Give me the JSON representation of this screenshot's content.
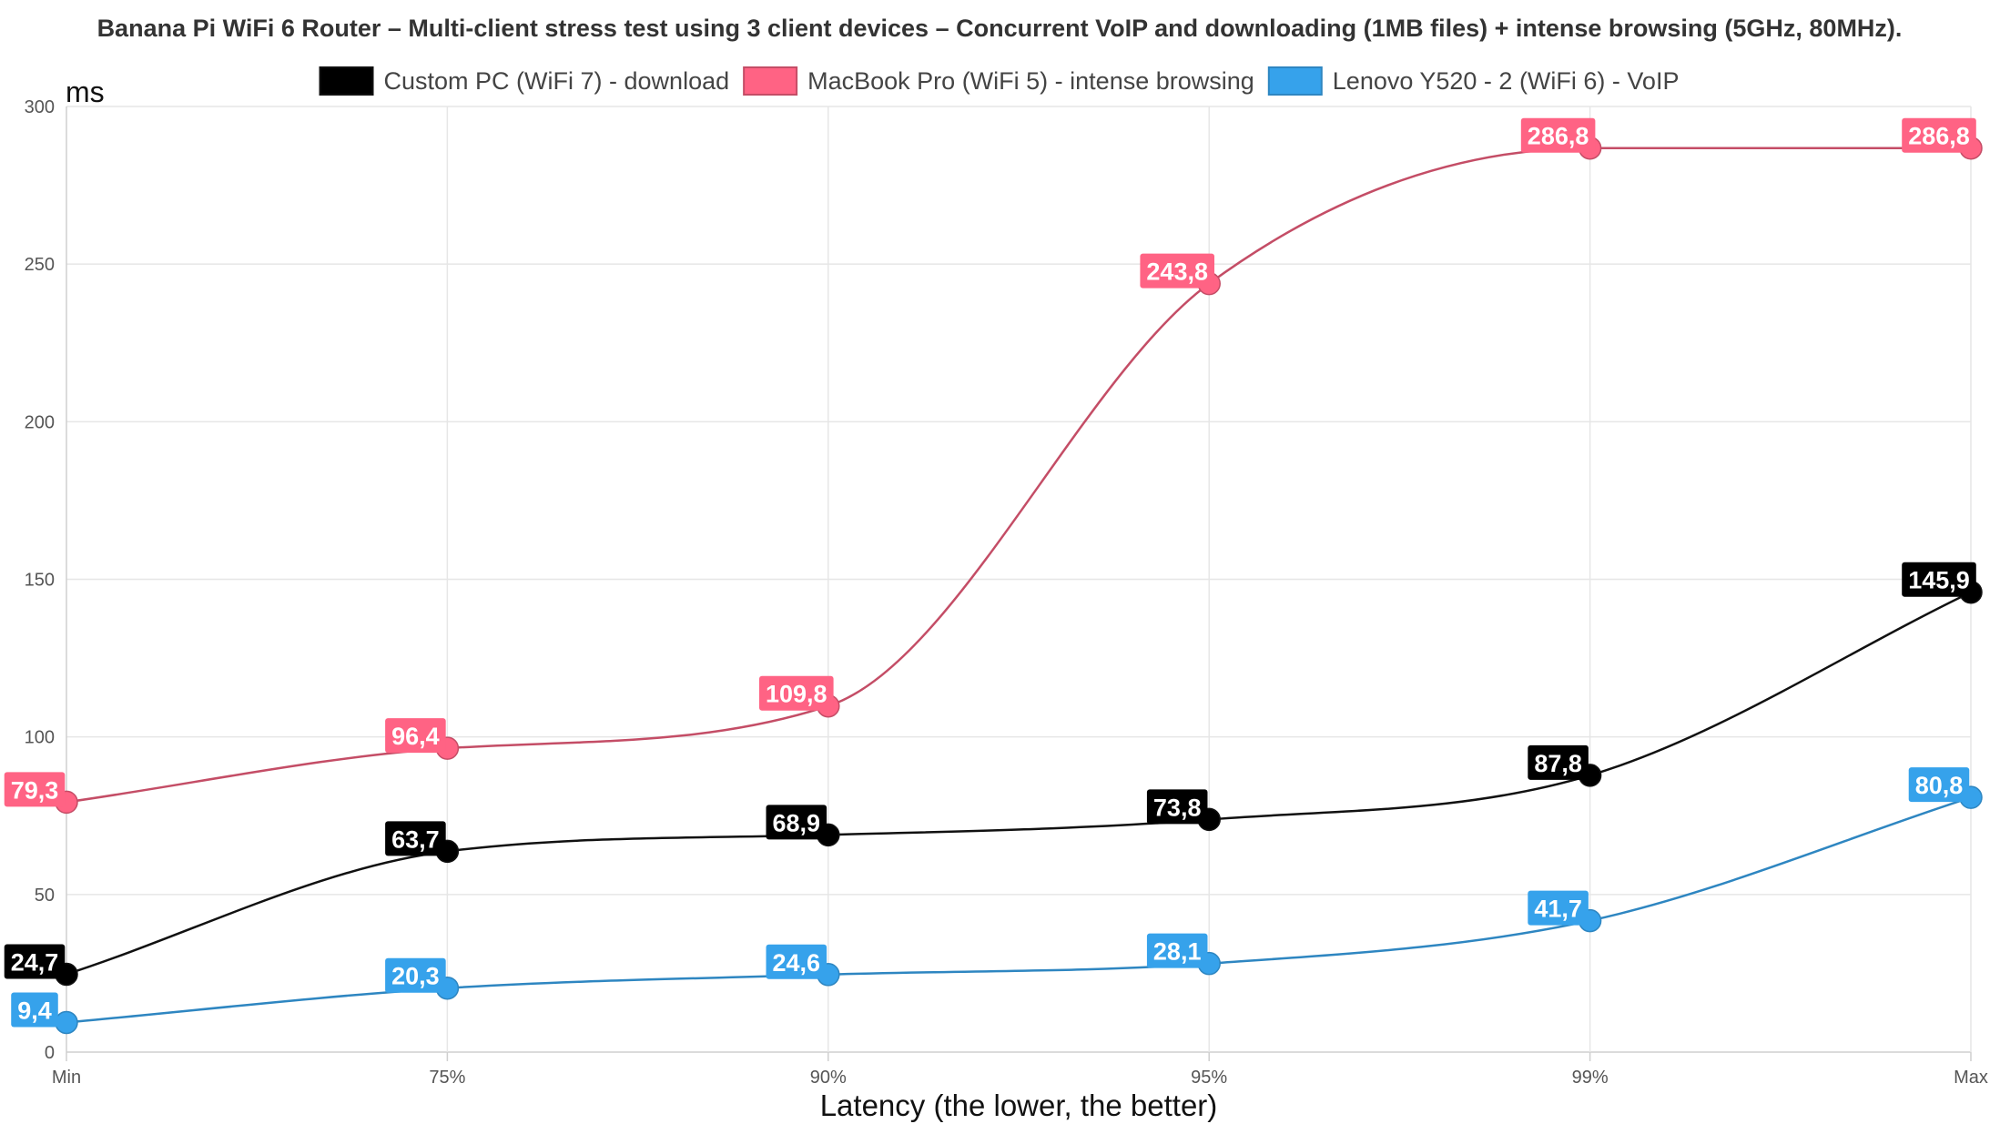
{
  "chart_data": {
    "type": "line",
    "title": "Banana Pi WiFi 6 Router – Multi-client stress test using 3 client devices – Concurrent VoIP and downloading (1MB files) + intense browsing (5GHz, 80MHz).",
    "xlabel": "Latency (the lower, the better)",
    "ylabel": "ms",
    "categories": [
      "Min",
      "75%",
      "90%",
      "95%",
      "99%",
      "Max"
    ],
    "ylim": [
      0,
      300
    ],
    "yticks": [
      0,
      50,
      100,
      150,
      200,
      250,
      300
    ],
    "ytick_labels": [
      "0",
      "50",
      "100",
      "150",
      "200",
      "250",
      "300"
    ],
    "grid": true,
    "legend_position": "top",
    "series": [
      {
        "name": "Custom PC (WiFi 7) - download",
        "color": "#000000",
        "line_color": "#111111",
        "values": [
          24.7,
          63.7,
          68.9,
          73.8,
          87.8,
          145.9
        ],
        "labels": [
          "24,7",
          "63,7",
          "68,9",
          "73,8",
          "87,8",
          "145,9"
        ]
      },
      {
        "name": "MacBook Pro (WiFi 5) - intense browsing",
        "color": "#ff6384",
        "line_color": "#c44d66",
        "values": [
          79.3,
          96.4,
          109.8,
          243.8,
          286.8,
          286.8
        ],
        "labels": [
          "79,3",
          "96,4",
          "109,8",
          "243,8",
          "286,8",
          "286,8"
        ]
      },
      {
        "name": "Lenovo Y520 - 2  (WiFi 6) - VoIP",
        "color": "#36a2eb",
        "line_color": "#2e86c1",
        "values": [
          9.4,
          20.3,
          24.6,
          28.1,
          41.7,
          80.8
        ],
        "labels": [
          "9,4",
          "20,3",
          "24,6",
          "28,1",
          "41,7",
          "80,8"
        ]
      }
    ]
  }
}
